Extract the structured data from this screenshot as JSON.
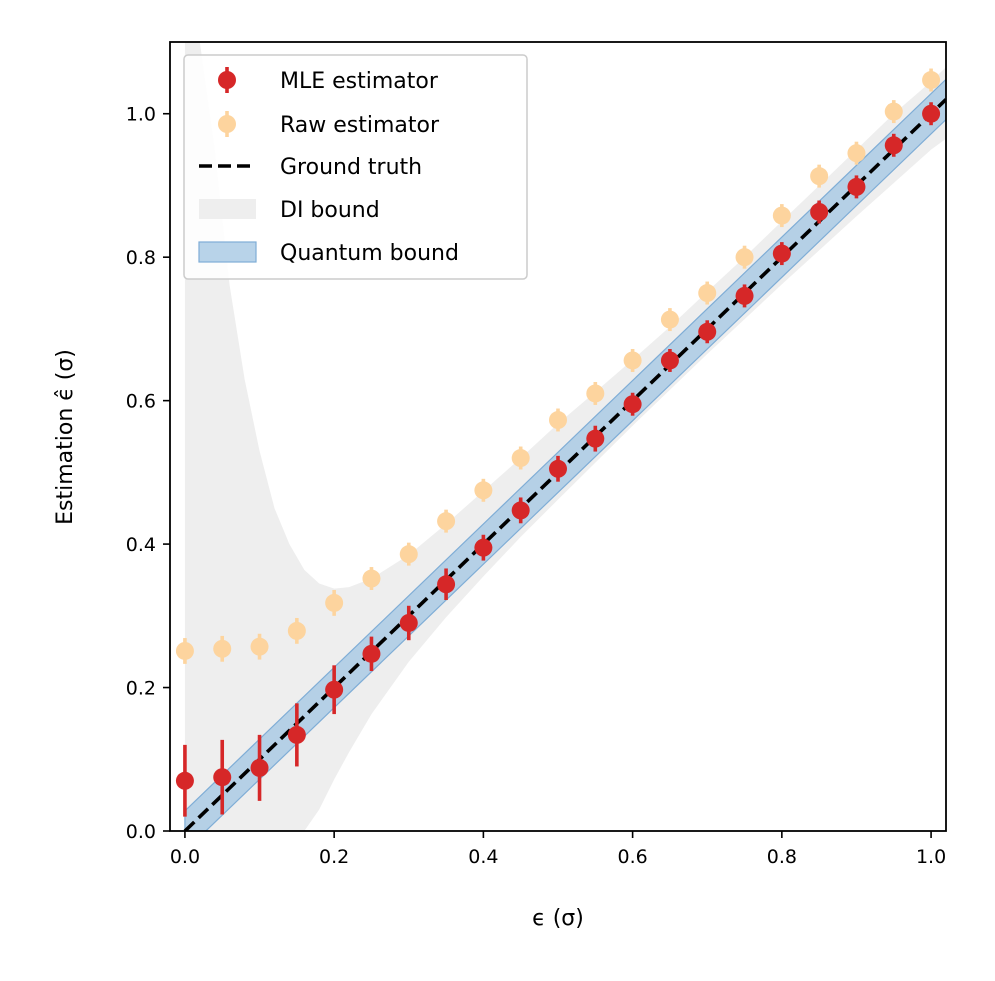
{
  "chart_data": {
    "type": "scatter",
    "xlabel": "ϵ (σ)",
    "ylabel": "Estimation ϵ̂ (σ)",
    "xlim": [
      -0.02,
      1.02
    ],
    "ylim": [
      0.0,
      1.1
    ],
    "xticks": [
      "0.0",
      "0.2",
      "0.4",
      "0.6",
      "0.8",
      "1.0"
    ],
    "yticks": [
      "0.0",
      "0.2",
      "0.4",
      "0.6",
      "0.8",
      "1.0"
    ],
    "grid": false,
    "legend_position": "top-left",
    "x": [
      0.0,
      0.05,
      0.1,
      0.15,
      0.2,
      0.25,
      0.3,
      0.35,
      0.4,
      0.45,
      0.5,
      0.55,
      0.6,
      0.65,
      0.7,
      0.75,
      0.8,
      0.85,
      0.9,
      0.95,
      1.0
    ],
    "series": [
      {
        "name": "MLE estimator",
        "kind": "errorbar",
        "color": "#d62728",
        "y": [
          0.07,
          0.075,
          0.088,
          0.134,
          0.197,
          0.247,
          0.29,
          0.344,
          0.395,
          0.447,
          0.505,
          0.547,
          0.595,
          0.656,
          0.696,
          0.746,
          0.805,
          0.863,
          0.898,
          0.956,
          1.0
        ],
        "yerr": [
          0.05,
          0.052,
          0.046,
          0.044,
          0.034,
          0.024,
          0.024,
          0.022,
          0.018,
          0.018,
          0.018,
          0.018,
          0.016,
          0.016,
          0.016,
          0.016,
          0.016,
          0.016,
          0.016,
          0.016,
          0.016
        ]
      },
      {
        "name": "Raw estimator",
        "kind": "errorbar",
        "color": "#fdd49e",
        "y": [
          0.251,
          0.254,
          0.257,
          0.279,
          0.318,
          0.352,
          0.386,
          0.432,
          0.475,
          0.52,
          0.573,
          0.61,
          0.656,
          0.713,
          0.75,
          0.8,
          0.858,
          0.913,
          0.945,
          1.003,
          1.047
        ],
        "yerr": [
          0.018,
          0.018,
          0.018,
          0.018,
          0.018,
          0.016,
          0.016,
          0.016,
          0.016,
          0.016,
          0.016,
          0.016,
          0.016,
          0.016,
          0.016,
          0.016,
          0.016,
          0.016,
          0.016,
          0.016,
          0.016
        ]
      },
      {
        "name": "Ground truth",
        "kind": "dashed-line",
        "color": "#000000",
        "points": [
          [
            0.0,
            0.0
          ],
          [
            1.02,
            1.02
          ]
        ]
      },
      {
        "name": "DI bound",
        "kind": "band",
        "color": "#eeeeee",
        "upper": [
          [
            0.0,
            1.1
          ],
          [
            0.02,
            1.1
          ],
          [
            0.04,
            0.95
          ],
          [
            0.06,
            0.76
          ],
          [
            0.08,
            0.63
          ],
          [
            0.1,
            0.53
          ],
          [
            0.12,
            0.45
          ],
          [
            0.14,
            0.4
          ],
          [
            0.16,
            0.364
          ],
          [
            0.18,
            0.345
          ],
          [
            0.2,
            0.338
          ],
          [
            0.22,
            0.34
          ],
          [
            0.25,
            0.352
          ],
          [
            0.3,
            0.385
          ],
          [
            0.35,
            0.428
          ],
          [
            0.4,
            0.474
          ],
          [
            0.45,
            0.52
          ],
          [
            0.5,
            0.568
          ],
          [
            0.55,
            0.612
          ],
          [
            0.6,
            0.657
          ],
          [
            0.65,
            0.703
          ],
          [
            0.7,
            0.752
          ],
          [
            0.75,
            0.8
          ],
          [
            0.8,
            0.85
          ],
          [
            0.85,
            0.9
          ],
          [
            0.9,
            0.95
          ],
          [
            0.95,
            1.0
          ],
          [
            1.0,
            1.045
          ],
          [
            1.02,
            1.065
          ]
        ],
        "lower": [
          [
            1.02,
            0.965
          ],
          [
            1.0,
            0.95
          ],
          [
            0.9,
            0.857
          ],
          [
            0.8,
            0.762
          ],
          [
            0.7,
            0.665
          ],
          [
            0.6,
            0.565
          ],
          [
            0.5,
            0.462
          ],
          [
            0.45,
            0.41
          ],
          [
            0.4,
            0.355
          ],
          [
            0.35,
            0.298
          ],
          [
            0.3,
            0.236
          ],
          [
            0.25,
            0.163
          ],
          [
            0.22,
            0.11
          ],
          [
            0.2,
            0.072
          ],
          [
            0.18,
            0.03
          ],
          [
            0.16,
            0.0
          ],
          [
            0.0,
            0.0
          ]
        ]
      },
      {
        "name": "Quantum bound",
        "kind": "band",
        "color": "#a6c8e4",
        "halfwidth": 0.028,
        "x_range": [
          0.0,
          1.02
        ]
      }
    ]
  }
}
